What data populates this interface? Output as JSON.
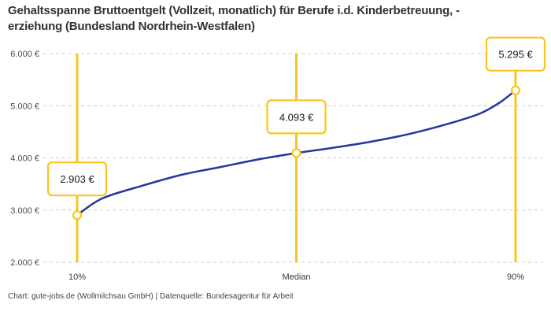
{
  "header": {
    "title_lines": [
      "Gehaltsspanne Bruttoentgelt (Vollzeit, monatlich) für Berufe i.d. Kinderbetreuung, -",
      "erziehung (Bundesland Nordrhein-Westfalen)"
    ]
  },
  "footer": {
    "credit": "Chart: gute-jobs.de (Wollmilchsau GmbH) | Datenquelle: Bundesagentur für Arbeit"
  },
  "chart_data": {
    "type": "line",
    "title": "Gehaltsspanne Bruttoentgelt (Vollzeit, monatlich) für Berufe i.d. Kinderbetreuung, -erziehung (Bundesland Nordrhein-Westfalen)",
    "categories": [
      "10%",
      "Median",
      "90%"
    ],
    "values": [
      2903,
      4093,
      5295
    ],
    "value_labels": [
      "2.903 €",
      "4.093 €",
      "5.295 €"
    ],
    "unit": "€",
    "ylim": [
      2000,
      6000
    ],
    "y_ticks": [
      2000,
      3000,
      4000,
      5000,
      6000
    ],
    "y_tick_labels": [
      "2.000 €",
      "3.000 €",
      "4.000 €",
      "5.000 €",
      "6.000 €"
    ],
    "grid": "horizontal-dashed",
    "legend": "none",
    "curve_profile": [
      [
        0.0,
        2903
      ],
      [
        0.057,
        3222
      ],
      [
        0.147,
        3463
      ],
      [
        0.237,
        3674
      ],
      [
        0.327,
        3825
      ],
      [
        0.416,
        3976
      ],
      [
        0.5,
        4093
      ],
      [
        0.578,
        4187
      ],
      [
        0.668,
        4308
      ],
      [
        0.758,
        4459
      ],
      [
        0.847,
        4655
      ],
      [
        0.919,
        4851
      ],
      [
        0.964,
        5062
      ],
      [
        1.0,
        5295
      ]
    ],
    "colors": {
      "line": "#23379E",
      "accent": "#FCC41D",
      "grid": "#CCCCCC",
      "tick_text": "#4D4D4D",
      "axis_text": "#3A3A3A",
      "label_text": "#1A1A1A",
      "label_box_bg": "#FFFFFF"
    }
  }
}
